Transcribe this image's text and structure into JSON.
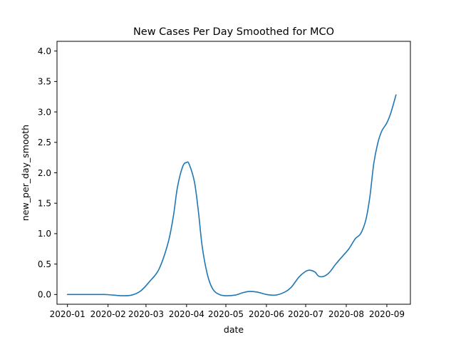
{
  "chart_data": {
    "type": "line",
    "title": "New Cases Per Day Smoothed for MCO",
    "xlabel": "date",
    "ylabel": "new_per_day_smooth",
    "xlim": [
      "2019-12-24",
      "2020-09-19"
    ],
    "ylim": [
      -0.16,
      4.16
    ],
    "x_ticks": [
      {
        "date": "2020-01-01",
        "label": "2020-01"
      },
      {
        "date": "2020-02-01",
        "label": "2020-02"
      },
      {
        "date": "2020-03-01",
        "label": "2020-03"
      },
      {
        "date": "2020-04-01",
        "label": "2020-04"
      },
      {
        "date": "2020-05-01",
        "label": "2020-05"
      },
      {
        "date": "2020-06-01",
        "label": "2020-06"
      },
      {
        "date": "2020-07-01",
        "label": "2020-07"
      },
      {
        "date": "2020-08-01",
        "label": "2020-08"
      },
      {
        "date": "2020-09-01",
        "label": "2020-09"
      }
    ],
    "y_ticks": [
      {
        "value": 0.0,
        "label": "0.0"
      },
      {
        "value": 0.5,
        "label": "0.5"
      },
      {
        "value": 1.0,
        "label": "1.0"
      },
      {
        "value": 1.5,
        "label": "1.5"
      },
      {
        "value": 2.0,
        "label": "2.0"
      },
      {
        "value": 2.5,
        "label": "2.5"
      },
      {
        "value": 3.0,
        "label": "3.0"
      },
      {
        "value": 3.5,
        "label": "3.5"
      },
      {
        "value": 4.0,
        "label": "4.0"
      }
    ],
    "grid": false,
    "series": [
      {
        "color": "#1f77b4",
        "points": [
          [
            "2020-01-01",
            0.0
          ],
          [
            "2020-01-15",
            0.0
          ],
          [
            "2020-01-29",
            0.0
          ],
          [
            "2020-02-05",
            -0.01
          ],
          [
            "2020-02-12",
            -0.02
          ],
          [
            "2020-02-19",
            -0.01
          ],
          [
            "2020-02-26",
            0.06
          ],
          [
            "2020-03-04",
            0.22
          ],
          [
            "2020-03-11",
            0.42
          ],
          [
            "2020-03-18",
            0.86
          ],
          [
            "2020-03-22",
            1.3
          ],
          [
            "2020-03-25",
            1.76
          ],
          [
            "2020-03-29",
            2.1
          ],
          [
            "2020-04-01",
            2.17
          ],
          [
            "2020-04-03",
            2.14
          ],
          [
            "2020-04-07",
            1.85
          ],
          [
            "2020-04-10",
            1.37
          ],
          [
            "2020-04-13",
            0.78
          ],
          [
            "2020-04-17",
            0.32
          ],
          [
            "2020-04-21",
            0.09
          ],
          [
            "2020-04-26",
            0.0
          ],
          [
            "2020-05-01",
            -0.02
          ],
          [
            "2020-05-08",
            -0.01
          ],
          [
            "2020-05-14",
            0.03
          ],
          [
            "2020-05-19",
            0.05
          ],
          [
            "2020-05-25",
            0.04
          ],
          [
            "2020-06-01",
            0.0
          ],
          [
            "2020-06-08",
            -0.01
          ],
          [
            "2020-06-15",
            0.04
          ],
          [
            "2020-06-20",
            0.12
          ],
          [
            "2020-06-26",
            0.29
          ],
          [
            "2020-07-01",
            0.38
          ],
          [
            "2020-07-04",
            0.4
          ],
          [
            "2020-07-08",
            0.37
          ],
          [
            "2020-07-11",
            0.3
          ],
          [
            "2020-07-15",
            0.3
          ],
          [
            "2020-07-19",
            0.36
          ],
          [
            "2020-07-24",
            0.5
          ],
          [
            "2020-07-30",
            0.65
          ],
          [
            "2020-08-03",
            0.75
          ],
          [
            "2020-08-08",
            0.92
          ],
          [
            "2020-08-12",
            1.0
          ],
          [
            "2020-08-16",
            1.23
          ],
          [
            "2020-08-19",
            1.6
          ],
          [
            "2020-08-22",
            2.15
          ],
          [
            "2020-08-25",
            2.48
          ],
          [
            "2020-08-28",
            2.68
          ],
          [
            "2020-09-01",
            2.82
          ],
          [
            "2020-09-04",
            2.98
          ],
          [
            "2020-09-08",
            3.28
          ]
        ]
      }
    ]
  }
}
